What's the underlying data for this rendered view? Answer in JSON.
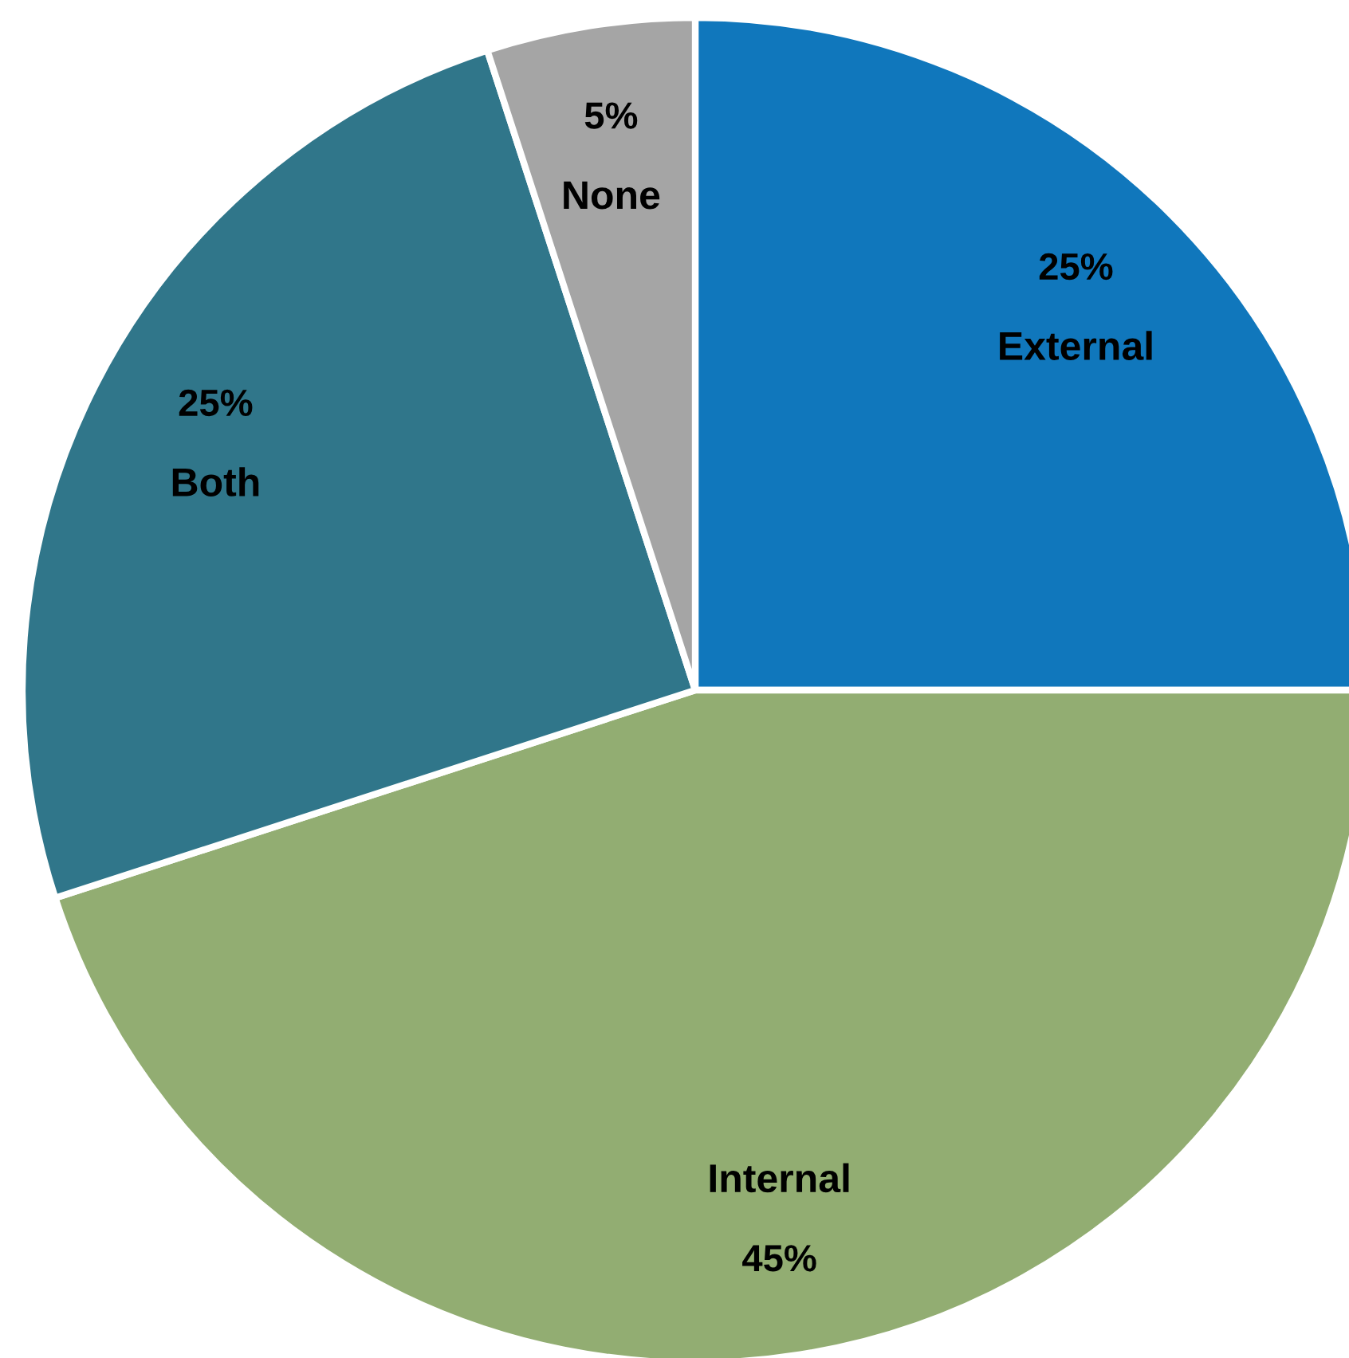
{
  "chart_data": {
    "type": "pie",
    "categories": [
      "External",
      "Internal",
      "Both",
      "None"
    ],
    "values": [
      25,
      45,
      25,
      5
    ],
    "value_labels": [
      "25%",
      "45%",
      "25%",
      "5%"
    ],
    "colors": [
      "#1077bc",
      "#92ad72",
      "#30768a",
      "#a5a5a5"
    ]
  }
}
